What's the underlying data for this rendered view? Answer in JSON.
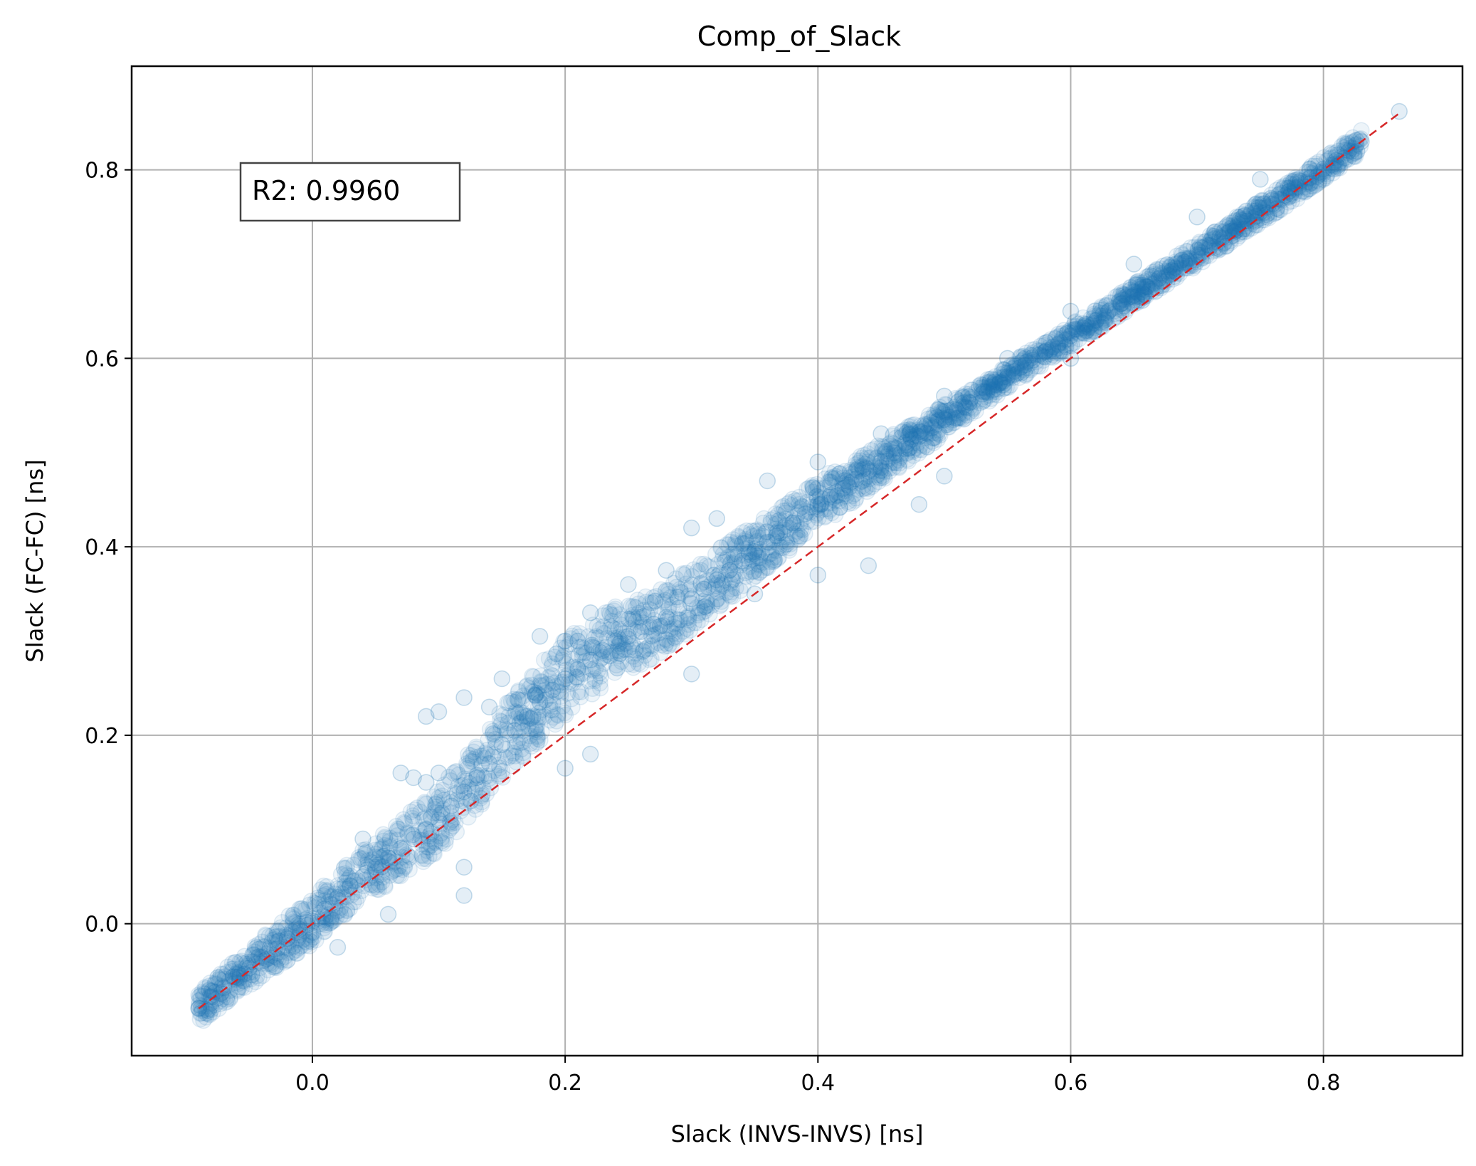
{
  "chart_data": {
    "type": "scatter",
    "title": "Comp_of_Slack",
    "xlabel": "Slack (INVS-INVS) [ns]",
    "ylabel": "Slack (FC-FC) [ns]",
    "xlim": [
      -0.143,
      0.91
    ],
    "ylim": [
      -0.14,
      0.91
    ],
    "xticks": [
      0.0,
      0.2,
      0.4,
      0.6,
      0.8
    ],
    "yticks": [
      0.0,
      0.2,
      0.4,
      0.6,
      0.8
    ],
    "xtick_labels": [
      "0.0",
      "0.2",
      "0.4",
      "0.6",
      "0.8"
    ],
    "ytick_labels": [
      "0.0",
      "0.2",
      "0.4",
      "0.6",
      "0.8"
    ],
    "grid": true,
    "annotation": "R2: 0.9960",
    "point_color": "#1f77b4",
    "point_alpha": 0.12,
    "reference_line": {
      "from": [
        -0.09,
        -0.09
      ],
      "to": [
        0.86,
        0.86
      ],
      "color": "#d62728",
      "style": "dashed"
    },
    "points": [
      [
        -0.09,
        -0.09
      ],
      [
        -0.08,
        -0.078
      ],
      [
        -0.07,
        -0.068
      ],
      [
        -0.06,
        -0.057
      ],
      [
        -0.05,
        -0.047
      ],
      [
        -0.04,
        -0.036
      ],
      [
        -0.03,
        -0.027
      ],
      [
        -0.02,
        -0.016
      ],
      [
        -0.01,
        -0.006
      ],
      [
        0.0,
        0.003
      ],
      [
        0.01,
        0.016
      ],
      [
        0.02,
        0.028
      ],
      [
        0.03,
        0.04
      ],
      [
        0.04,
        0.05
      ],
      [
        0.05,
        0.06
      ],
      [
        0.06,
        0.07
      ],
      [
        0.07,
        0.08
      ],
      [
        0.08,
        0.09
      ],
      [
        0.09,
        0.1
      ],
      [
        0.1,
        0.11
      ],
      [
        0.11,
        0.125
      ],
      [
        0.12,
        0.14
      ],
      [
        0.13,
        0.155
      ],
      [
        0.14,
        0.17
      ],
      [
        0.15,
        0.19
      ],
      [
        0.16,
        0.205
      ],
      [
        0.17,
        0.22
      ],
      [
        0.18,
        0.235
      ],
      [
        0.19,
        0.248
      ],
      [
        0.2,
        0.26
      ],
      [
        0.21,
        0.27
      ],
      [
        0.22,
        0.28
      ],
      [
        0.23,
        0.29
      ],
      [
        0.24,
        0.3
      ],
      [
        0.25,
        0.305
      ],
      [
        0.26,
        0.31
      ],
      [
        0.27,
        0.318
      ],
      [
        0.28,
        0.325
      ],
      [
        0.29,
        0.335
      ],
      [
        0.3,
        0.345
      ],
      [
        0.31,
        0.355
      ],
      [
        0.32,
        0.365
      ],
      [
        0.33,
        0.375
      ],
      [
        0.34,
        0.385
      ],
      [
        0.35,
        0.395
      ],
      [
        0.36,
        0.405
      ],
      [
        0.37,
        0.415
      ],
      [
        0.38,
        0.425
      ],
      [
        0.39,
        0.435
      ],
      [
        0.4,
        0.445
      ],
      [
        0.41,
        0.455
      ],
      [
        0.42,
        0.462
      ],
      [
        0.43,
        0.472
      ],
      [
        0.44,
        0.48
      ],
      [
        0.45,
        0.49
      ],
      [
        0.46,
        0.5
      ],
      [
        0.47,
        0.508
      ],
      [
        0.48,
        0.517
      ],
      [
        0.49,
        0.526
      ],
      [
        0.5,
        0.535
      ],
      [
        0.51,
        0.545
      ],
      [
        0.52,
        0.553
      ],
      [
        0.53,
        0.562
      ],
      [
        0.54,
        0.572
      ],
      [
        0.55,
        0.58
      ],
      [
        0.56,
        0.59
      ],
      [
        0.57,
        0.598
      ],
      [
        0.58,
        0.607
      ],
      [
        0.59,
        0.615
      ],
      [
        0.6,
        0.624
      ],
      [
        0.61,
        0.632
      ],
      [
        0.62,
        0.64
      ],
      [
        0.63,
        0.65
      ],
      [
        0.64,
        0.658
      ],
      [
        0.65,
        0.667
      ],
      [
        0.66,
        0.676
      ],
      [
        0.67,
        0.685
      ],
      [
        0.68,
        0.693
      ],
      [
        0.69,
        0.702
      ],
      [
        0.7,
        0.71
      ],
      [
        0.71,
        0.72
      ],
      [
        0.72,
        0.728
      ],
      [
        0.73,
        0.737
      ],
      [
        0.74,
        0.746
      ],
      [
        0.75,
        0.755
      ],
      [
        0.76,
        0.764
      ],
      [
        0.77,
        0.773
      ],
      [
        0.78,
        0.782
      ],
      [
        0.79,
        0.792
      ],
      [
        0.8,
        0.801
      ],
      [
        0.81,
        0.81
      ],
      [
        0.82,
        0.82
      ],
      [
        0.83,
        0.83
      ],
      [
        0.86,
        0.862
      ],
      [
        0.07,
        0.16
      ],
      [
        0.08,
        0.155
      ],
      [
        0.09,
        0.15
      ],
      [
        0.1,
        0.16
      ],
      [
        0.09,
        0.22
      ],
      [
        0.1,
        0.225
      ],
      [
        0.12,
        0.24
      ],
      [
        0.15,
        0.26
      ],
      [
        0.18,
        0.305
      ],
      [
        0.2,
        0.3
      ],
      [
        0.22,
        0.33
      ],
      [
        0.25,
        0.36
      ],
      [
        0.28,
        0.375
      ],
      [
        0.3,
        0.42
      ],
      [
        0.32,
        0.43
      ],
      [
        0.36,
        0.47
      ],
      [
        0.4,
        0.49
      ],
      [
        0.45,
        0.52
      ],
      [
        0.5,
        0.56
      ],
      [
        0.55,
        0.6
      ],
      [
        0.6,
        0.65
      ],
      [
        0.65,
        0.7
      ],
      [
        0.7,
        0.75
      ],
      [
        0.75,
        0.79
      ],
      [
        0.02,
        -0.025
      ],
      [
        0.06,
        0.01
      ],
      [
        0.12,
        0.06
      ],
      [
        0.12,
        0.03
      ],
      [
        0.2,
        0.165
      ],
      [
        0.22,
        0.18
      ],
      [
        0.3,
        0.265
      ],
      [
        0.35,
        0.35
      ],
      [
        0.4,
        0.37
      ],
      [
        0.44,
        0.38
      ],
      [
        0.5,
        0.475
      ],
      [
        0.48,
        0.445
      ],
      [
        0.6,
        0.6
      ],
      [
        0.21,
        0.3
      ],
      [
        0.14,
        0.23
      ],
      [
        0.04,
        0.09
      ]
    ]
  }
}
